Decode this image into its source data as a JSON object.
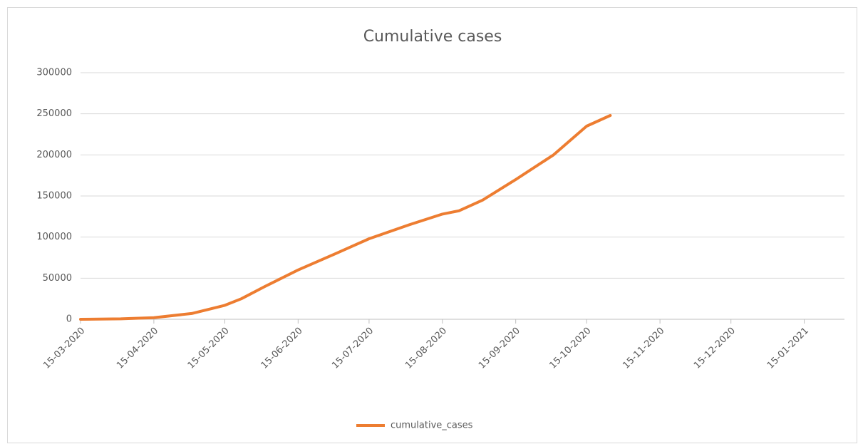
{
  "chart_data": {
    "type": "line",
    "title": "Cumulative cases",
    "x": [
      "2020-03-15",
      "2020-04-01",
      "2020-04-15",
      "2020-05-01",
      "2020-05-15",
      "2020-05-22",
      "2020-06-01",
      "2020-06-15",
      "2020-07-01",
      "2020-07-15",
      "2020-08-01",
      "2020-08-15",
      "2020-08-22",
      "2020-09-01",
      "2020-09-15",
      "2020-10-01",
      "2020-10-15",
      "2020-10-25"
    ],
    "series": [
      {
        "name": "cumulative_cases",
        "color": "#ed7d31",
        "values": [
          0,
          500,
          2000,
          7000,
          17000,
          25000,
          40000,
          60000,
          80000,
          98000,
          115000,
          128000,
          132000,
          145000,
          170000,
          200000,
          235000,
          248000
        ]
      }
    ],
    "xlim": [
      "2020-03-15",
      "2021-02-01"
    ],
    "xticks": [
      {
        "value": "2020-03-15",
        "label": "15-03-2020"
      },
      {
        "value": "2020-04-15",
        "label": "15-04-2020"
      },
      {
        "value": "2020-05-15",
        "label": "15-05-2020"
      },
      {
        "value": "2020-06-15",
        "label": "15-06-2020"
      },
      {
        "value": "2020-07-15",
        "label": "15-07-2020"
      },
      {
        "value": "2020-08-15",
        "label": "15-08-2020"
      },
      {
        "value": "2020-09-15",
        "label": "15-09-2020"
      },
      {
        "value": "2020-10-15",
        "label": "15-10-2020"
      },
      {
        "value": "2020-11-15",
        "label": "15-11-2020"
      },
      {
        "value": "2020-12-15",
        "label": "15-12-2020"
      },
      {
        "value": "2021-01-15",
        "label": "15-01-2021"
      }
    ],
    "ylim": [
      0,
      300000
    ],
    "yticks": [
      0,
      50000,
      100000,
      150000,
      200000,
      250000,
      300000
    ],
    "grid": true,
    "legend": "bottom"
  }
}
